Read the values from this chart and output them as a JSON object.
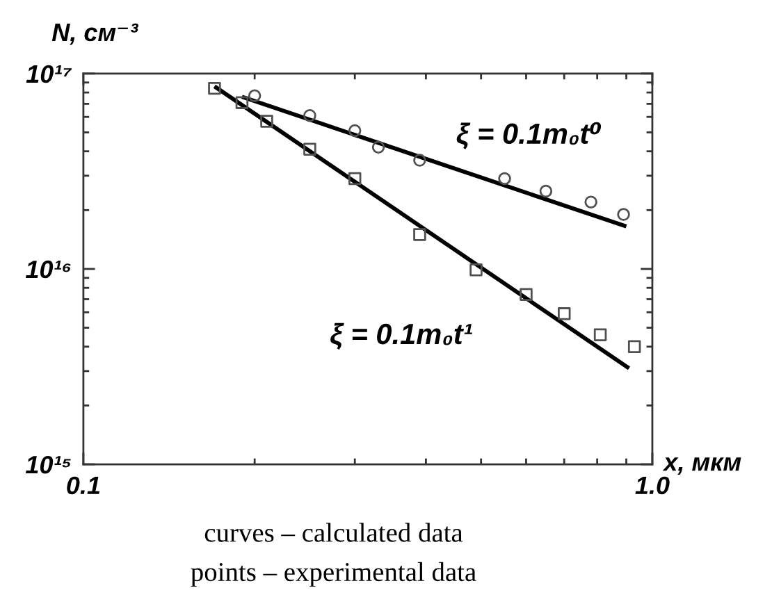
{
  "chart_data": {
    "type": "scatter",
    "xlabel": "x, мкм",
    "ylabel": "N, см⁻³",
    "log": "xy",
    "xlim": [
      0.1,
      1.0
    ],
    "ylim": [
      1000000000000000.0,
      1e+17
    ],
    "xticks": [
      {
        "value": 0.1,
        "label": "0.1"
      },
      {
        "value": 0.2,
        "label": null
      },
      {
        "value": 0.3,
        "label": null
      },
      {
        "value": 0.4,
        "label": null
      },
      {
        "value": 0.5,
        "label": null
      },
      {
        "value": 0.6,
        "label": null
      },
      {
        "value": 0.7,
        "label": null
      },
      {
        "value": 0.8,
        "label": null
      },
      {
        "value": 0.9,
        "label": null
      },
      {
        "value": 1.0,
        "label": "1.0"
      }
    ],
    "yticks": [
      {
        "value": 1000000000000000.0,
        "label": "10¹⁵"
      },
      {
        "value": 2000000000000000.0,
        "label": null
      },
      {
        "value": 3000000000000000.0,
        "label": null
      },
      {
        "value": 4000000000000000.0,
        "label": null
      },
      {
        "value": 5000000000000000.0,
        "label": null
      },
      {
        "value": 6000000000000000.0,
        "label": null
      },
      {
        "value": 7000000000000000.0,
        "label": null
      },
      {
        "value": 8000000000000000.0,
        "label": null
      },
      {
        "value": 9000000000000000.0,
        "label": null
      },
      {
        "value": 1e+16,
        "label": "10¹⁶"
      },
      {
        "value": 2e+16,
        "label": null
      },
      {
        "value": 3e+16,
        "label": null
      },
      {
        "value": 4e+16,
        "label": null
      },
      {
        "value": 5e+16,
        "label": null
      },
      {
        "value": 6e+16,
        "label": null
      },
      {
        "value": 7e+16,
        "label": null
      },
      {
        "value": 8e+16,
        "label": null
      },
      {
        "value": 9e+16,
        "label": null
      },
      {
        "value": 1e+17,
        "label": "10¹⁷"
      }
    ],
    "series": [
      {
        "type": "line",
        "color": "#000000",
        "line_style": "solid",
        "x": [
          0.19,
          0.9
        ],
        "values": [
          7.6e+16,
          1.65e+16
        ]
      },
      {
        "type": "line",
        "color": "#000000",
        "line_style": "solid",
        "x": [
          0.17,
          0.91
        ],
        "values": [
          8.6e+16,
          3100000000000000.0
        ]
      },
      {
        "marker": "circle",
        "color": "#505050",
        "x": [
          0.2,
          0.25,
          0.3,
          0.33,
          0.39,
          0.55,
          0.65,
          0.78,
          0.89
        ],
        "values": [
          7.7e+16,
          6.1e+16,
          5.1e+16,
          4.2e+16,
          3.6e+16,
          2.9e+16,
          2.5e+16,
          2.2e+16,
          1.9e+16
        ]
      },
      {
        "marker": "square",
        "color": "#505050",
        "x": [
          0.17,
          0.19,
          0.21,
          0.25,
          0.3,
          0.39,
          0.49,
          0.6,
          0.7,
          0.81,
          0.93
        ],
        "values": [
          8.4e+16,
          7.1e+16,
          5.7e+16,
          4.1e+16,
          2.9e+16,
          1.5e+16,
          9900000000000000.0,
          7400000000000000.0,
          5900000000000000.0,
          4600000000000000.0,
          4000000000000000.0
        ]
      }
    ],
    "annotations": [
      "ξ = 0.1m₀t⁰",
      "ξ = 0.1m₀t¹",
      "curves – calculated data",
      "points – experimental data"
    ]
  }
}
